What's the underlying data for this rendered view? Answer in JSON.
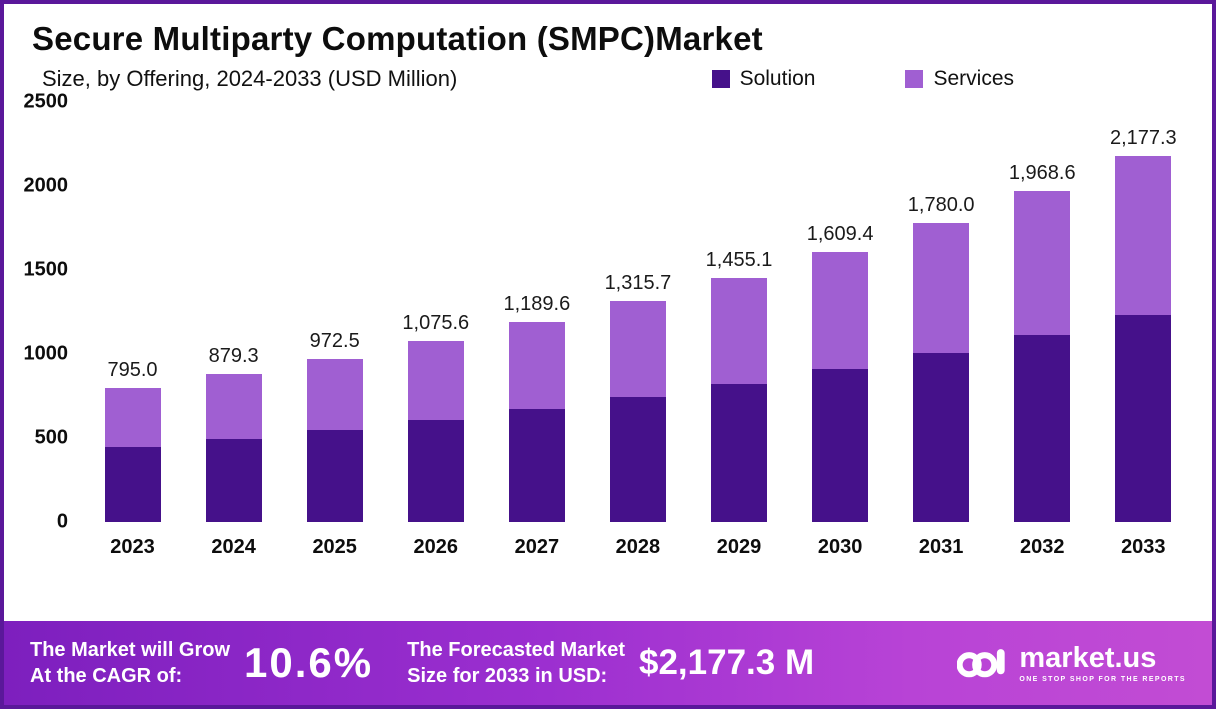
{
  "header": {
    "title": "Secure Multiparty Computation (SMPC)Market",
    "subtitle": "Size, by Offering, 2024-2033 (USD Million)"
  },
  "legend": [
    {
      "label": "Solution",
      "color": "#45118a"
    },
    {
      "label": "Services",
      "color": "#a05fd2"
    }
  ],
  "chart_data": {
    "type": "bar",
    "stacked": true,
    "title": "Secure Multiparty Computation (SMPC) Market Size, by Offering, 2024-2033 (USD Million)",
    "categories": [
      "2023",
      "2024",
      "2025",
      "2026",
      "2027",
      "2028",
      "2029",
      "2030",
      "2031",
      "2032",
      "2033"
    ],
    "series": [
      {
        "name": "Solution",
        "color": "#45118a",
        "values": [
          449.2,
          496.8,
          549.5,
          607.7,
          672.1,
          743.4,
          822.1,
          909.3,
          1005.7,
          1112.3,
          1230.2
        ]
      },
      {
        "name": "Services",
        "color": "#a05fd2",
        "values": [
          345.8,
          382.5,
          423.0,
          467.9,
          517.5,
          572.3,
          633.0,
          700.1,
          774.3,
          856.3,
          947.1
        ]
      }
    ],
    "totals": [
      795.0,
      879.3,
      972.5,
      1075.6,
      1189.6,
      1315.7,
      1455.1,
      1609.4,
      1780.0,
      1968.6,
      2177.3
    ],
    "totals_display": [
      "795.0",
      "879.3",
      "972.5",
      "1,075.6",
      "1,189.6",
      "1,315.7",
      "1,455.1",
      "1,609.4",
      "1,780.0",
      "1,968.6",
      "2,177.3"
    ],
    "xlabel": "",
    "ylabel": "",
    "ylim": [
      0,
      2500
    ],
    "yticks": [
      0,
      500,
      1000,
      1500,
      2000,
      2500
    ],
    "grid": false,
    "legend_position": "top"
  },
  "footer": {
    "left_line1": "The Market will Grow",
    "left_line2": "At the CAGR of:",
    "cagr": "10.6%",
    "mid_line1": "The Forecasted Market",
    "mid_line2": "Size for 2033 in USD:",
    "forecast": "$2,177.3 M",
    "brand": "market.us",
    "tagline": "ONE STOP SHOP FOR THE REPORTS"
  }
}
